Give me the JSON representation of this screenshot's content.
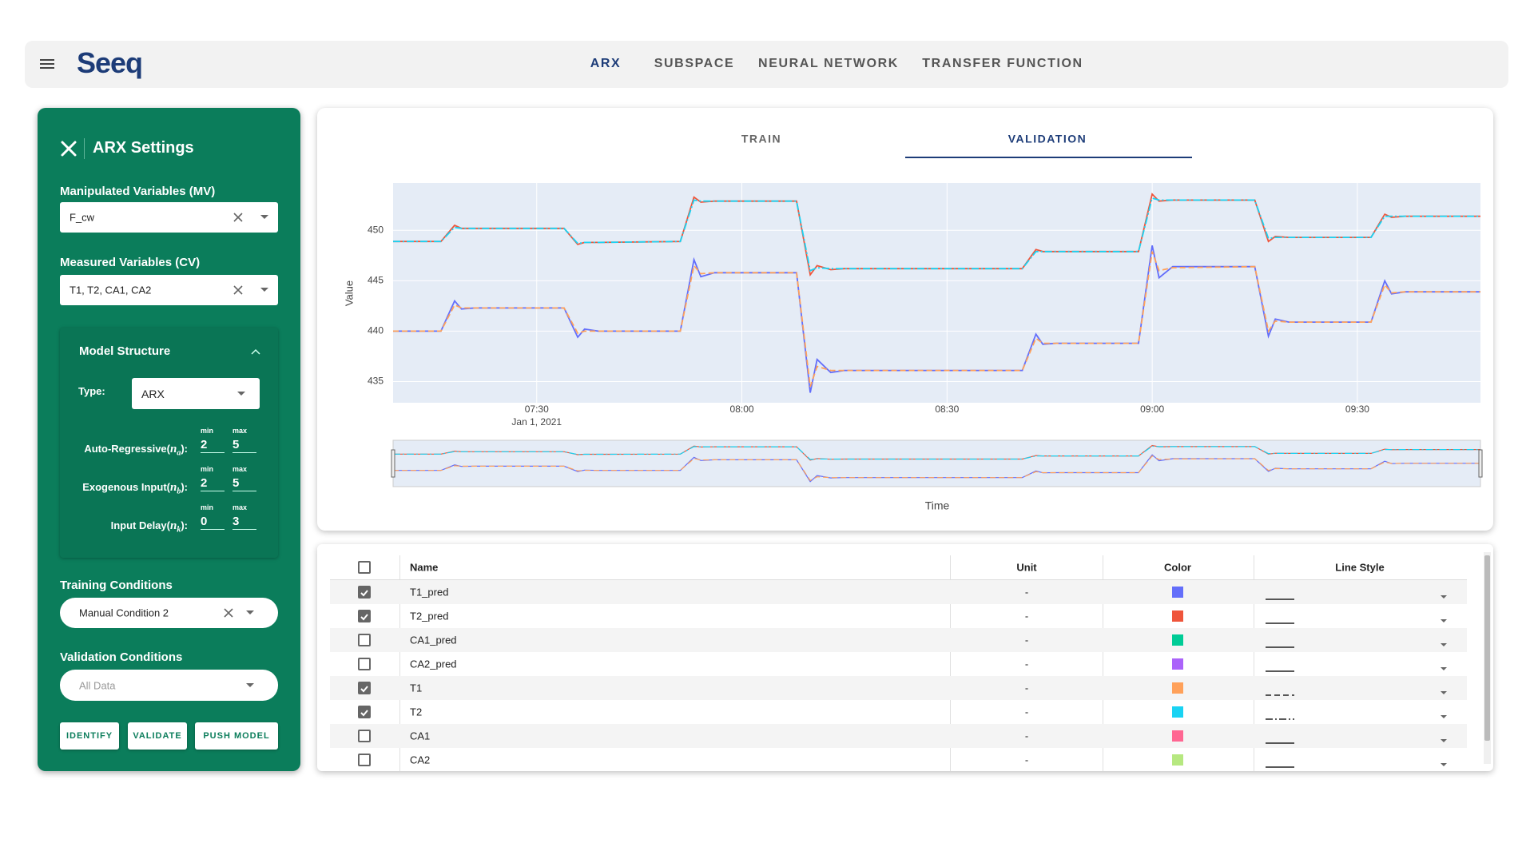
{
  "header": {
    "logo": "Seeq",
    "tabs": [
      "ARX",
      "SUBSPACE",
      "NEURAL NETWORK",
      "TRANSFER FUNCTION"
    ]
  },
  "sidebar": {
    "title": "ARX Settings",
    "mv_label": "Manipulated Variables (MV)",
    "mv_value": "F_cw",
    "cv_label": "Measured Variables (CV)",
    "cv_value": "T1, T2, CA1, CA2",
    "model_structure": {
      "title": "Model Structure",
      "type_label": "Type:",
      "type_value": "ARX",
      "min_label": "min",
      "max_label": "max",
      "params": [
        {
          "label_before": "Auto-Regressive(",
          "symbol": "n",
          "sub": "a",
          "label_after": "):",
          "min": 2,
          "max": 5
        },
        {
          "label_before": "Exogenous Input(",
          "symbol": "n",
          "sub": "b",
          "label_after": "):",
          "min": 2,
          "max": 5
        },
        {
          "label_before": "Input Delay(",
          "symbol": "n",
          "sub": "k",
          "label_after": "):",
          "min": 0,
          "max": 3
        }
      ]
    },
    "training_label": "Training Conditions",
    "training_value": "Manual Condition 2",
    "validation_label": "Validation Conditions",
    "validation_placeholder": "All Data",
    "buttons": [
      "IDENTIFY",
      "VALIDATE",
      "PUSH MODEL"
    ]
  },
  "chart_tabs": [
    "TRAIN",
    "VALIDATION"
  ],
  "chart_data": {
    "type": "line",
    "xlabel": "Time",
    "ylabel": "Value",
    "x": [
      "2021-01-01 07:09",
      "2021-01-01 07:16",
      "2021-01-01 07:18",
      "2021-01-01 07:19",
      "2021-01-01 07:21",
      "2021-01-01 07:34",
      "2021-01-01 07:36",
      "2021-01-01 07:37",
      "2021-01-01 07:39",
      "2021-01-01 07:51",
      "2021-01-01 07:53",
      "2021-01-01 07:54",
      "2021-01-01 07:56",
      "2021-01-01 08:08",
      "2021-01-01 08:10",
      "2021-01-01 08:11",
      "2021-01-01 08:13",
      "2021-01-01 08:15",
      "2021-01-01 08:41",
      "2021-01-01 08:43",
      "2021-01-01 08:44",
      "2021-01-01 08:46",
      "2021-01-01 08:58",
      "2021-01-01 09:00",
      "2021-01-01 09:01",
      "2021-01-01 09:03",
      "2021-01-01 09:15",
      "2021-01-01 09:17",
      "2021-01-01 09:18",
      "2021-01-01 09:20",
      "2021-01-01 09:32",
      "2021-01-01 09:34",
      "2021-01-01 09:35",
      "2021-01-01 09:37",
      "2021-01-01 09:48"
    ],
    "series": [
      {
        "name": "T1_pred",
        "color": "#636efa",
        "dash": "solid",
        "values": [
          440.0,
          440.0,
          443.0,
          442.2,
          442.3,
          442.3,
          439.4,
          440.2,
          440.0,
          440.0,
          447.1,
          445.4,
          445.8,
          445.8,
          433.9,
          437.2,
          435.9,
          436.1,
          436.1,
          439.7,
          438.7,
          438.8,
          438.8,
          448.5,
          445.3,
          446.4,
          446.4,
          439.5,
          441.2,
          440.9,
          440.9,
          445.0,
          443.7,
          443.9,
          443.9
        ]
      },
      {
        "name": "T2_pred",
        "color": "#ef553b",
        "dash": "solid",
        "values": [
          448.9,
          448.9,
          450.5,
          450.2,
          450.2,
          450.2,
          448.6,
          448.8,
          448.8,
          448.9,
          453.3,
          452.8,
          452.9,
          452.9,
          445.6,
          446.5,
          446.1,
          446.2,
          446.2,
          448.1,
          447.9,
          447.9,
          447.9,
          453.6,
          452.9,
          453.0,
          453.0,
          448.9,
          449.4,
          449.3,
          449.3,
          451.6,
          451.3,
          451.4,
          451.4
        ]
      },
      {
        "name": "T1",
        "color": "#ffa15a",
        "dash": "dash",
        "values": [
          440.0,
          440.0,
          442.6,
          442.3,
          442.3,
          442.3,
          439.8,
          440.0,
          440.0,
          440.0,
          446.5,
          445.7,
          445.8,
          445.8,
          434.5,
          436.5,
          436.1,
          436.1,
          436.1,
          439.3,
          438.8,
          438.8,
          438.8,
          447.9,
          446.0,
          446.3,
          446.4,
          440.0,
          441.0,
          440.9,
          440.9,
          444.6,
          443.8,
          443.9,
          443.9
        ]
      },
      {
        "name": "T2",
        "color": "#19d3f3",
        "dash": "dashdot",
        "values": [
          448.9,
          448.9,
          450.3,
          450.2,
          450.2,
          450.2,
          448.7,
          448.8,
          448.8,
          448.9,
          453.0,
          452.9,
          452.9,
          452.9,
          446.0,
          446.3,
          446.2,
          446.2,
          446.2,
          447.9,
          447.9,
          447.9,
          447.9,
          453.2,
          453.0,
          453.0,
          453.0,
          449.2,
          449.3,
          449.3,
          449.3,
          451.4,
          451.4,
          451.4,
          451.4
        ]
      }
    ],
    "xlim": [
      "2021-01-01 07:09",
      "2021-01-01 09:48"
    ],
    "xticks": [
      {
        "value": "2021-01-01 07:30",
        "label": "07:30"
      },
      {
        "value": "2021-01-01 08:00",
        "label": "08:00"
      },
      {
        "value": "2021-01-01 08:30",
        "label": "08:30"
      },
      {
        "value": "2021-01-01 09:00",
        "label": "09:00"
      },
      {
        "value": "2021-01-01 09:30",
        "label": "09:30"
      }
    ],
    "xtick_date": "Jan 1, 2021",
    "ylim": [
      432.9,
      454.7
    ],
    "yticks": [
      435,
      440,
      445,
      450
    ],
    "grid": true,
    "range_slider": true
  },
  "table": {
    "headers": [
      "Name",
      "Unit",
      "Color",
      "Line Style"
    ],
    "rows": [
      {
        "name": "T1_pred",
        "unit": "-",
        "color": "#636efa",
        "line_style": "solid",
        "checked": true
      },
      {
        "name": "T2_pred",
        "unit": "-",
        "color": "#ef553b",
        "line_style": "solid",
        "checked": true
      },
      {
        "name": "CA1_pred",
        "unit": "-",
        "color": "#00cc96",
        "line_style": "solid",
        "checked": false
      },
      {
        "name": "CA2_pred",
        "unit": "-",
        "color": "#ab63fa",
        "line_style": "solid",
        "checked": false
      },
      {
        "name": "T1",
        "unit": "-",
        "color": "#ffa15a",
        "line_style": "dash",
        "checked": true
      },
      {
        "name": "T2",
        "unit": "-",
        "color": "#19d3f3",
        "line_style": "dashdot",
        "checked": true
      },
      {
        "name": "CA1",
        "unit": "-",
        "color": "#ff6692",
        "line_style": "solid",
        "checked": false
      },
      {
        "name": "CA2",
        "unit": "-",
        "color": "#b6e880",
        "line_style": "solid",
        "checked": false
      }
    ]
  }
}
